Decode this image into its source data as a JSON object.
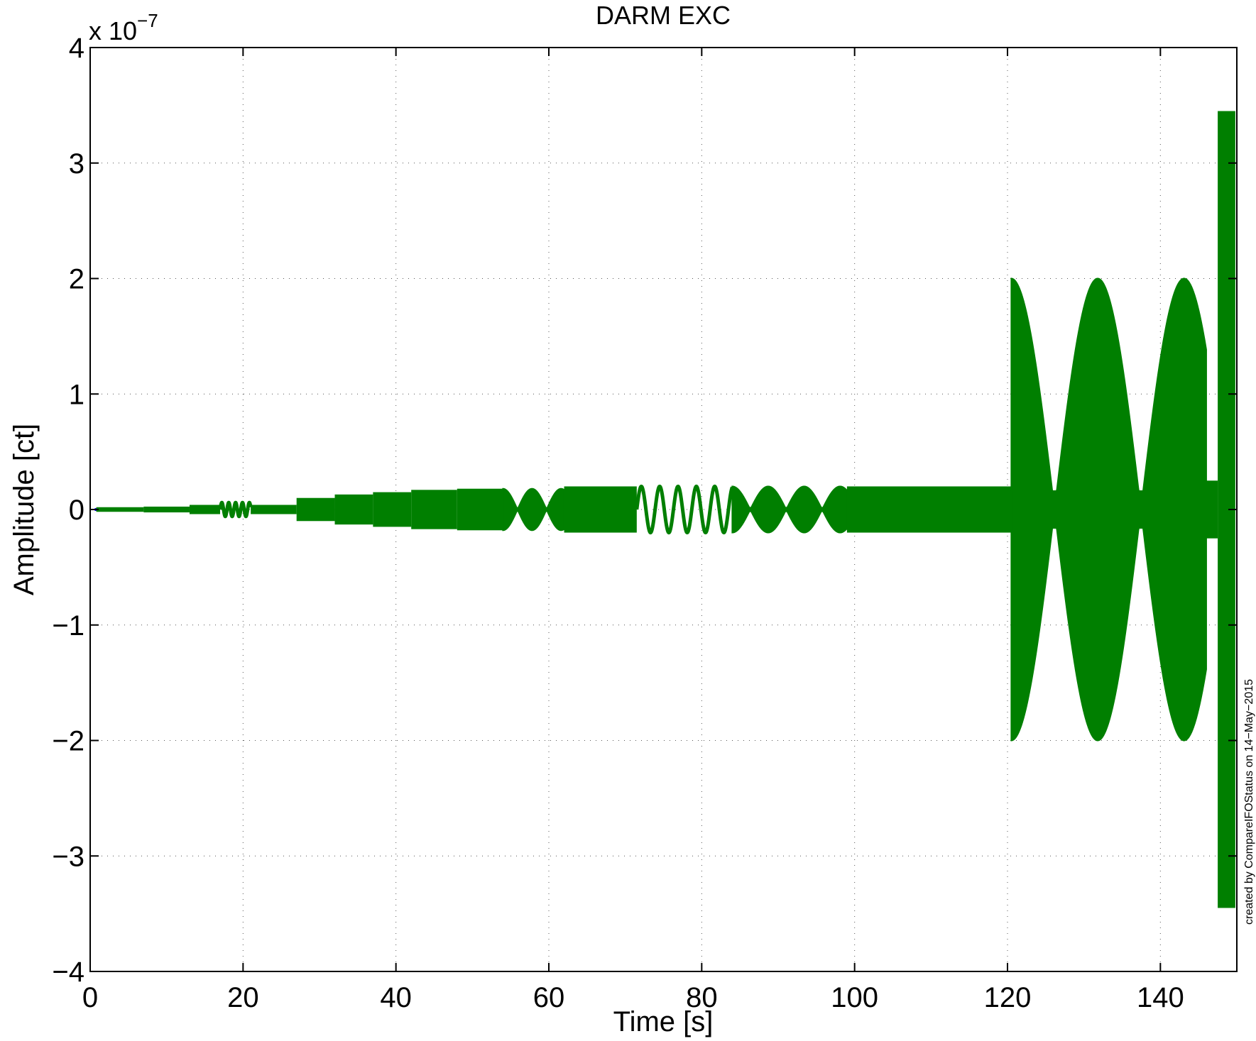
{
  "chart_data": {
    "type": "line",
    "title": "DARM EXC",
    "xlabel": "Time [s]",
    "ylabel": "Amplitude [ct]",
    "y_exponent_label": "x 10",
    "y_exponent_power": "−7",
    "credit": "created by CompareIFOStatus on 14−May−2015",
    "xlim": [
      0,
      150
    ],
    "ylim": [
      -4,
      4
    ],
    "xticks": [
      0,
      20,
      40,
      60,
      80,
      100,
      120,
      140
    ],
    "xtick_labels": [
      "0",
      "20",
      "40",
      "60",
      "80",
      "100",
      "120",
      "140"
    ],
    "yticks": [
      -4,
      -3,
      -2,
      -1,
      0,
      1,
      2,
      3,
      4
    ],
    "ytick_labels": [
      "−4",
      "−3",
      "−2",
      "−1",
      "0",
      "1",
      "2",
      "3",
      "4"
    ],
    "grid": true,
    "colors": {
      "excitation": "#007f00",
      "reference": "#0000ff"
    },
    "envelope_segments": [
      {
        "t_start": 0.8,
        "t_end": 7,
        "amplitude": 0.02,
        "style": "band"
      },
      {
        "t_start": 7,
        "t_end": 13,
        "amplitude": 0.025,
        "style": "band"
      },
      {
        "t_start": 13,
        "t_end": 17,
        "amplitude": 0.04,
        "style": "band"
      },
      {
        "t_start": 17,
        "t_end": 21,
        "amplitude": 0.06,
        "style": "sine",
        "period": 0.9
      },
      {
        "t_start": 21,
        "t_end": 27,
        "amplitude": 0.04,
        "style": "band"
      },
      {
        "t_start": 27,
        "t_end": 32,
        "amplitude": 0.1,
        "style": "band"
      },
      {
        "t_start": 32,
        "t_end": 37,
        "amplitude": 0.13,
        "style": "band"
      },
      {
        "t_start": 37,
        "t_end": 42,
        "amplitude": 0.15,
        "style": "band"
      },
      {
        "t_start": 42,
        "t_end": 48,
        "amplitude": 0.17,
        "style": "band"
      },
      {
        "t_start": 48,
        "t_end": 54,
        "amplitude": 0.18,
        "style": "band"
      },
      {
        "t_start": 54,
        "t_end": 62,
        "amplitude": 0.18,
        "style": "beats",
        "beat_period": 3.8
      },
      {
        "t_start": 62,
        "t_end": 71.5,
        "amplitude": 0.2,
        "style": "band"
      },
      {
        "t_start": 71.5,
        "t_end": 84,
        "amplitude": 0.2,
        "style": "sine",
        "period": 2.4
      },
      {
        "t_start": 84,
        "t_end": 99,
        "amplitude": 0.2,
        "style": "beats",
        "beat_period": 4.7
      },
      {
        "t_start": 99,
        "t_end": 120.5,
        "amplitude": 0.2,
        "style": "band"
      },
      {
        "t_start": 120.5,
        "t_end": 146,
        "amplitude": 2.0,
        "style": "beats",
        "beat_period": 11.3
      },
      {
        "t_start": 146,
        "t_end": 147.5,
        "amplitude": 0.25,
        "style": "band"
      },
      {
        "t_start": 147.5,
        "t_end": 149.8,
        "amplitude": 3.45,
        "style": "band"
      }
    ]
  }
}
